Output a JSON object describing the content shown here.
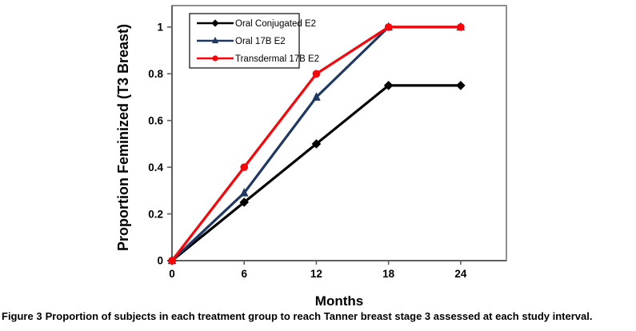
{
  "chart_data": {
    "type": "line",
    "title": "",
    "xlabel": "Months",
    "ylabel": "Proportion Feminized (T3 Breast)",
    "x": [
      0,
      6,
      12,
      18,
      24
    ],
    "series": [
      {
        "name": "Oral Conjugated E2",
        "color": "#000000",
        "marker": "diamond",
        "values": [
          0,
          0.25,
          0.5,
          0.75,
          0.75
        ]
      },
      {
        "name": "Oral 17B E2",
        "color": "#1F3864",
        "marker": "triangle",
        "values": [
          0,
          0.29,
          0.7,
          1,
          1
        ]
      },
      {
        "name": "Transdermal 17B E2",
        "color": "#FB0307",
        "marker": "circle",
        "values": [
          0,
          0.4,
          0.8,
          1,
          1
        ]
      }
    ],
    "x_ticks": [
      0,
      6,
      12,
      18,
      24
    ],
    "y_ticks": [
      0,
      0.2,
      0.4,
      0.6,
      0.8,
      1
    ],
    "xlim": [
      0,
      27.8
    ],
    "ylim": [
      0,
      1.092
    ],
    "grid": false,
    "legend_position": "top-left-inside"
  },
  "caption": {
    "label": "Figure 3",
    "text": "Proportion of subjects in each treatment group to reach Tanner breast stage 3 assessed at each study interval."
  }
}
